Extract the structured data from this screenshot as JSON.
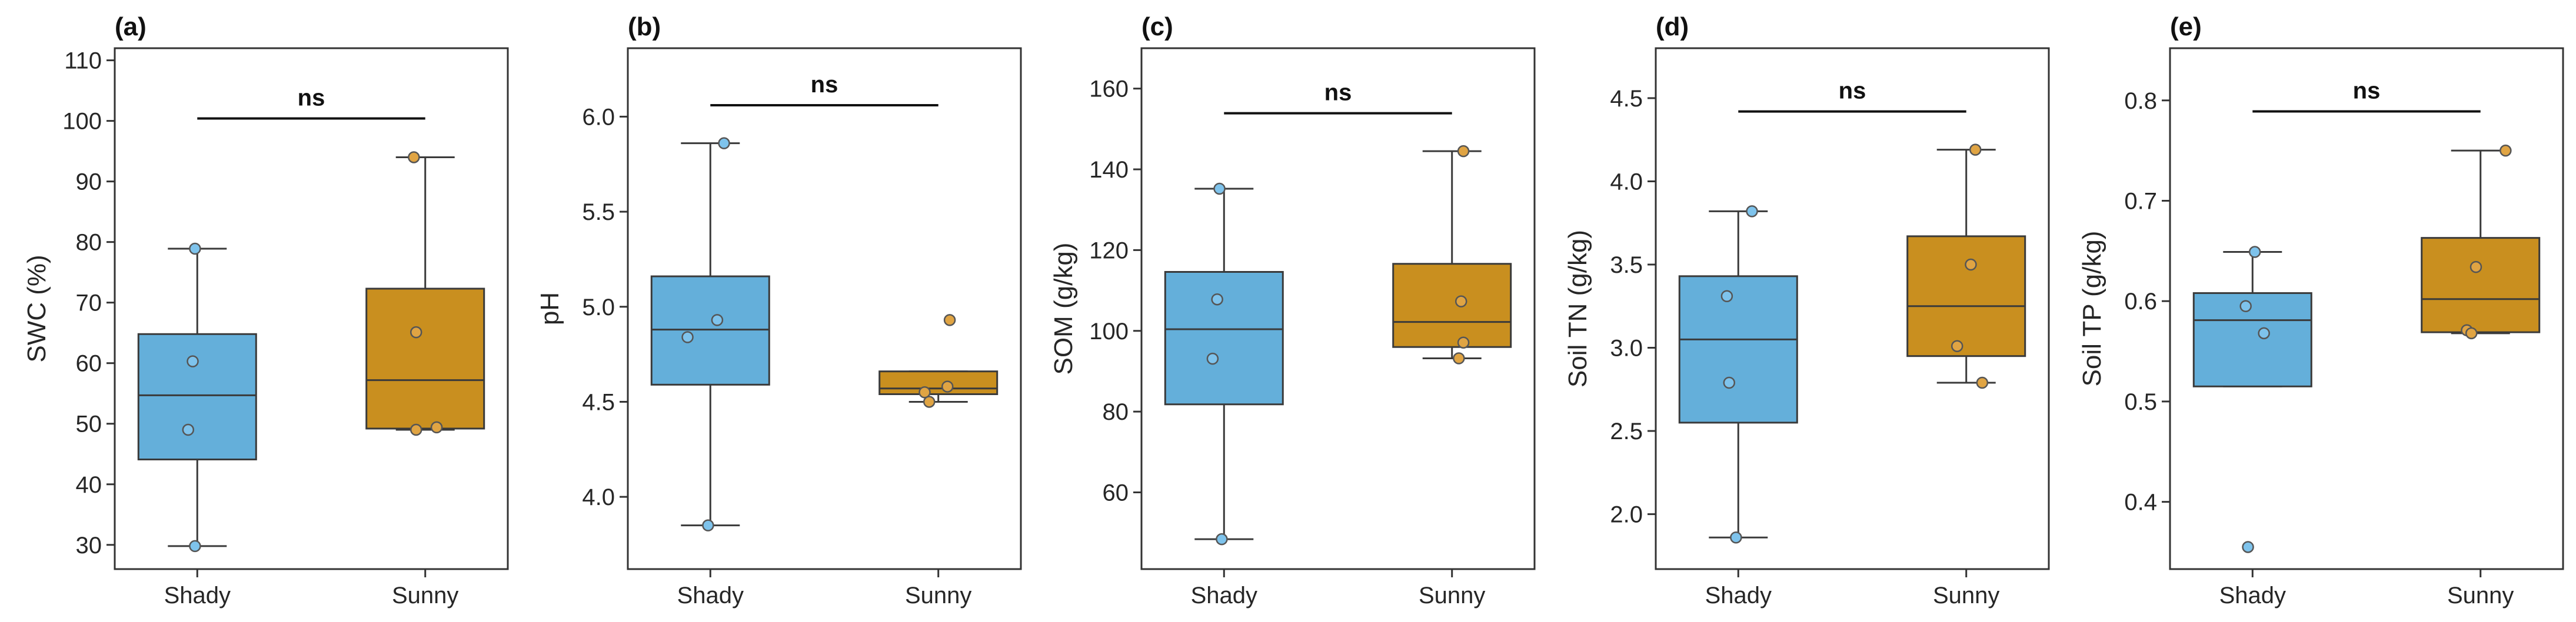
{
  "colors": {
    "Shady": "#64AFDA",
    "Sunny": "#C98F1F",
    "ShadyPoint": "#7EC3EC",
    "SunnyPoint": "#E0A443"
  },
  "chart_data": [
    {
      "type": "box",
      "panel": "(a)",
      "ylabel": "SWC (%)",
      "ylim": [
        26,
        112
      ],
      "yticks": [
        30,
        40,
        50,
        60,
        70,
        80,
        90,
        100,
        110
      ],
      "categories": [
        "Shady",
        "Sunny"
      ],
      "boxes": [
        {
          "name": "Shady",
          "whislo": 29.8,
          "q1": 44.1,
          "med": 54.7,
          "q3": 64.8,
          "whishi": 78.9
        },
        {
          "name": "Sunny",
          "whislo": 49.0,
          "q1": 49.2,
          "med": 57.2,
          "q3": 72.3,
          "whishi": 94.0
        }
      ],
      "points": [
        {
          "group": "Shady",
          "offset": -0.01,
          "value": 78.9
        },
        {
          "group": "Shady",
          "offset": -0.02,
          "value": 60.3
        },
        {
          "group": "Shady",
          "offset": -0.04,
          "value": 49.0
        },
        {
          "group": "Shady",
          "offset": -0.01,
          "value": 29.8
        },
        {
          "group": "Sunny",
          "offset": -0.05,
          "value": 94.0
        },
        {
          "group": "Sunny",
          "offset": -0.04,
          "value": 65.1
        },
        {
          "group": "Sunny",
          "offset": -0.04,
          "value": 49.0
        },
        {
          "group": "Sunny",
          "offset": 0.05,
          "value": 49.4
        }
      ],
      "significance": {
        "label": "ns",
        "y": 100.4
      }
    },
    {
      "type": "box",
      "panel": "(b)",
      "ylabel": "pH",
      "ylim": [
        3.62,
        6.36
      ],
      "yticks": [
        4.0,
        4.5,
        5.0,
        5.5,
        6.0
      ],
      "tick_format": 1,
      "categories": [
        "Shady",
        "Sunny"
      ],
      "boxes": [
        {
          "name": "Shady",
          "whislo": 3.85,
          "q1": 4.59,
          "med": 4.88,
          "q3": 5.16,
          "whishi": 5.86
        },
        {
          "name": "Sunny",
          "whislo": 4.5,
          "q1": 4.54,
          "med": 4.57,
          "q3": 4.66,
          "whishi": 4.66
        }
      ],
      "points": [
        {
          "group": "Shady",
          "offset": 0.06,
          "value": 5.86
        },
        {
          "group": "Shady",
          "offset": 0.03,
          "value": 4.93
        },
        {
          "group": "Shady",
          "offset": -0.1,
          "value": 4.84
        },
        {
          "group": "Shady",
          "offset": -0.01,
          "value": 3.85
        },
        {
          "group": "Sunny",
          "offset": 0.05,
          "value": 4.93
        },
        {
          "group": "Sunny",
          "offset": 0.04,
          "value": 4.58
        },
        {
          "group": "Sunny",
          "offset": -0.06,
          "value": 4.55
        },
        {
          "group": "Sunny",
          "offset": -0.04,
          "value": 4.5
        }
      ],
      "significance": {
        "label": "ns",
        "y": 6.06
      }
    },
    {
      "type": "box",
      "panel": "(c)",
      "ylabel": "SOM (g/kg)",
      "ylim": [
        41,
        170
      ],
      "yticks": [
        60,
        80,
        100,
        120,
        140,
        160
      ],
      "categories": [
        "Shady",
        "Sunny"
      ],
      "boxes": [
        {
          "name": "Shady",
          "whislo": 48.4,
          "q1": 81.8,
          "med": 100.4,
          "q3": 114.6,
          "whishi": 135.2
        },
        {
          "name": "Sunny",
          "whislo": 93.2,
          "q1": 96.0,
          "med": 102.2,
          "q3": 116.6,
          "whishi": 144.5
        }
      ],
      "points": [
        {
          "group": "Shady",
          "offset": -0.02,
          "value": 135.2
        },
        {
          "group": "Shady",
          "offset": -0.03,
          "value": 107.8
        },
        {
          "group": "Shady",
          "offset": -0.05,
          "value": 93.1
        },
        {
          "group": "Shady",
          "offset": -0.01,
          "value": 48.4
        },
        {
          "group": "Sunny",
          "offset": 0.05,
          "value": 144.5
        },
        {
          "group": "Sunny",
          "offset": 0.04,
          "value": 107.3
        },
        {
          "group": "Sunny",
          "offset": 0.05,
          "value": 97.1
        },
        {
          "group": "Sunny",
          "offset": 0.03,
          "value": 93.2
        }
      ],
      "significance": {
        "label": "ns",
        "y": 153.9
      }
    },
    {
      "type": "box",
      "panel": "(d)",
      "ylabel": "Soil TN (g/kg)",
      "ylim": [
        1.67,
        4.8
      ],
      "yticks": [
        2.0,
        2.5,
        3.0,
        3.5,
        4.0,
        4.5
      ],
      "tick_format": 1,
      "categories": [
        "Shady",
        "Sunny"
      ],
      "boxes": [
        {
          "name": "Shady",
          "whislo": 1.86,
          "q1": 2.55,
          "med": 3.05,
          "q3": 3.43,
          "whishi": 3.82
        },
        {
          "name": "Sunny",
          "whislo": 2.79,
          "q1": 2.95,
          "med": 3.25,
          "q3": 3.67,
          "whishi": 4.19
        }
      ],
      "points": [
        {
          "group": "Shady",
          "offset": 0.06,
          "value": 3.82
        },
        {
          "group": "Shady",
          "offset": -0.05,
          "value": 3.31
        },
        {
          "group": "Shady",
          "offset": -0.04,
          "value": 2.79
        },
        {
          "group": "Shady",
          "offset": -0.01,
          "value": 1.86
        },
        {
          "group": "Sunny",
          "offset": 0.04,
          "value": 4.19
        },
        {
          "group": "Sunny",
          "offset": 0.02,
          "value": 3.5
        },
        {
          "group": "Sunny",
          "offset": -0.04,
          "value": 3.01
        },
        {
          "group": "Sunny",
          "offset": 0.07,
          "value": 2.79
        }
      ],
      "significance": {
        "label": "ns",
        "y": 4.42
      }
    },
    {
      "type": "box",
      "panel": "(e)",
      "ylabel": "Soil TP (g/kg)",
      "ylim": [
        0.333,
        0.852
      ],
      "yticks": [
        0.4,
        0.5,
        0.6,
        0.7,
        0.8
      ],
      "tick_format": 1,
      "categories": [
        "Shady",
        "Sunny"
      ],
      "boxes": [
        {
          "name": "Shady",
          "whislo": 0.515,
          "q1": 0.515,
          "med": 0.581,
          "q3": 0.608,
          "whishi": 0.649
        },
        {
          "name": "Sunny",
          "whislo": 0.568,
          "q1": 0.569,
          "med": 0.602,
          "q3": 0.663,
          "whishi": 0.75
        }
      ],
      "points": [
        {
          "group": "Shady",
          "offset": 0.01,
          "value": 0.649
        },
        {
          "group": "Shady",
          "offset": -0.03,
          "value": 0.595
        },
        {
          "group": "Shady",
          "offset": 0.05,
          "value": 0.568
        },
        {
          "group": "Shady",
          "offset": -0.02,
          "value": 0.355
        },
        {
          "group": "Sunny",
          "offset": 0.11,
          "value": 0.75
        },
        {
          "group": "Sunny",
          "offset": -0.02,
          "value": 0.634
        },
        {
          "group": "Sunny",
          "offset": -0.06,
          "value": 0.571
        },
        {
          "group": "Sunny",
          "offset": -0.04,
          "value": 0.568
        }
      ],
      "significance": {
        "label": "ns",
        "y": 0.789
      }
    }
  ]
}
